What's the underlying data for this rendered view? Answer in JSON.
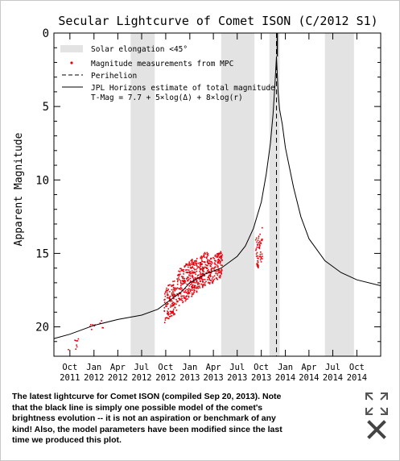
{
  "chart_data": {
    "type": "line",
    "title": "Secular Lightcurve of Comet ISON (C/2012 S1)",
    "ylabel": "Apparent Magnitude",
    "xlabel": "",
    "ylim": [
      22,
      0
    ],
    "yticks": [
      0,
      5,
      10,
      15,
      20
    ],
    "x_range": [
      "2011-08-01",
      "2014-12-31"
    ],
    "xticks": [
      {
        "month": "Oct",
        "year": "2011",
        "date": "2011-10-01"
      },
      {
        "month": "Jan",
        "year": "2012",
        "date": "2012-01-01"
      },
      {
        "month": "Apr",
        "year": "2012",
        "date": "2012-04-01"
      },
      {
        "month": "Jul",
        "year": "2012",
        "date": "2012-07-01"
      },
      {
        "month": "Oct",
        "year": "2012",
        "date": "2012-10-01"
      },
      {
        "month": "Jan",
        "year": "2013",
        "date": "2013-01-01"
      },
      {
        "month": "Apr",
        "year": "2013",
        "date": "2013-04-01"
      },
      {
        "month": "Jul",
        "year": "2013",
        "date": "2013-07-01"
      },
      {
        "month": "Oct",
        "year": "2013",
        "date": "2013-10-01"
      },
      {
        "month": "Jan",
        "year": "2014",
        "date": "2014-01-01"
      },
      {
        "month": "Apr",
        "year": "2014",
        "date": "2014-04-01"
      },
      {
        "month": "Jul",
        "year": "2014",
        "date": "2014-07-01"
      },
      {
        "month": "Oct",
        "year": "2014",
        "date": "2014-10-01"
      }
    ],
    "legend": {
      "placement": "top-left",
      "entries": [
        {
          "label": "Solar elongation <45°",
          "kind": "band"
        },
        {
          "label": "Magnitude measurements from MPC",
          "kind": "point"
        },
        {
          "label": "Perihelion",
          "kind": "dashed"
        },
        {
          "label": "JPL Horizons estimate of total magnitude",
          "kind": "line"
        }
      ],
      "formula": "T-Mag = 7.7  + 5×log(Δ) + 8×log(r)"
    },
    "elongation_bands": [
      [
        "2012-05-20",
        "2012-08-20"
      ],
      [
        "2013-05-01",
        "2013-09-05"
      ],
      [
        "2013-11-01",
        "2013-12-10"
      ],
      [
        "2014-06-01",
        "2014-09-20"
      ]
    ],
    "perihelion_date": "2013-11-28",
    "total_magnitude_curve": [
      {
        "x": "2011-08-01",
        "y": 20.8
      },
      {
        "x": "2011-10-01",
        "y": 20.5
      },
      {
        "x": "2012-01-01",
        "y": 19.9
      },
      {
        "x": "2012-04-01",
        "y": 19.5
      },
      {
        "x": "2012-07-01",
        "y": 19.2
      },
      {
        "x": "2012-09-01",
        "y": 18.8
      },
      {
        "x": "2012-10-01",
        "y": 18.4
      },
      {
        "x": "2012-12-01",
        "y": 17.6
      },
      {
        "x": "2013-01-01",
        "y": 17.0
      },
      {
        "x": "2013-03-01",
        "y": 16.4
      },
      {
        "x": "2013-05-01",
        "y": 16.0
      },
      {
        "x": "2013-07-01",
        "y": 15.2
      },
      {
        "x": "2013-08-01",
        "y": 14.5
      },
      {
        "x": "2013-09-01",
        "y": 13.3
      },
      {
        "x": "2013-10-01",
        "y": 11.5
      },
      {
        "x": "2013-10-20",
        "y": 9.6
      },
      {
        "x": "2013-11-05",
        "y": 7.5
      },
      {
        "x": "2013-11-15",
        "y": 5.5
      },
      {
        "x": "2013-11-22",
        "y": 3.5
      },
      {
        "x": "2013-11-26",
        "y": 2.2
      },
      {
        "x": "2013-11-28",
        "y": 1.6
      },
      {
        "x": "2013-11-30",
        "y": 2.4
      },
      {
        "x": "2013-12-04",
        "y": 4.0
      },
      {
        "x": "2013-12-10",
        "y": 5.2
      },
      {
        "x": "2013-12-20",
        "y": 6.2
      },
      {
        "x": "2014-01-01",
        "y": 7.8
      },
      {
        "x": "2014-02-01",
        "y": 10.5
      },
      {
        "x": "2014-03-01",
        "y": 12.5
      },
      {
        "x": "2014-04-01",
        "y": 14.0
      },
      {
        "x": "2014-06-01",
        "y": 15.5
      },
      {
        "x": "2014-08-01",
        "y": 16.3
      },
      {
        "x": "2014-10-01",
        "y": 16.8
      },
      {
        "x": "2014-12-31",
        "y": 17.2
      }
    ],
    "measurement_clusters": [
      {
        "start": "2011-09-15",
        "end": "2011-11-15",
        "y_lo": 20.7,
        "y_hi": 21.6,
        "n": 8
      },
      {
        "start": "2011-12-10",
        "end": "2012-02-10",
        "y_lo": 19.5,
        "y_hi": 20.3,
        "n": 10
      },
      {
        "start": "2012-09-25",
        "end": "2012-11-15",
        "y_lo": 16.9,
        "y_hi": 19.5,
        "n": 140
      },
      {
        "start": "2012-11-15",
        "end": "2013-01-15",
        "y_lo": 15.6,
        "y_hi": 18.4,
        "n": 200
      },
      {
        "start": "2013-01-15",
        "end": "2013-03-15",
        "y_lo": 15.0,
        "y_hi": 17.6,
        "n": 200
      },
      {
        "start": "2013-03-15",
        "end": "2013-05-05",
        "y_lo": 15.0,
        "y_hi": 17.0,
        "n": 150
      },
      {
        "start": "2013-09-10",
        "end": "2013-10-05",
        "y_lo": 13.5,
        "y_hi": 16.2,
        "n": 60
      }
    ]
  },
  "caption": "The latest lightcurve for Comet ISON (compiled Sep 20, 2013). Note that the black line is simply one possible model of the comet's brightness evolution -- it is not an aspiration or benchmark of any kind! Also, the model parameters have been modified since the last time we produced this plot.",
  "controls": {
    "expand_icon": "expand-arrows-icon",
    "close_icon": "close-x-icon"
  }
}
